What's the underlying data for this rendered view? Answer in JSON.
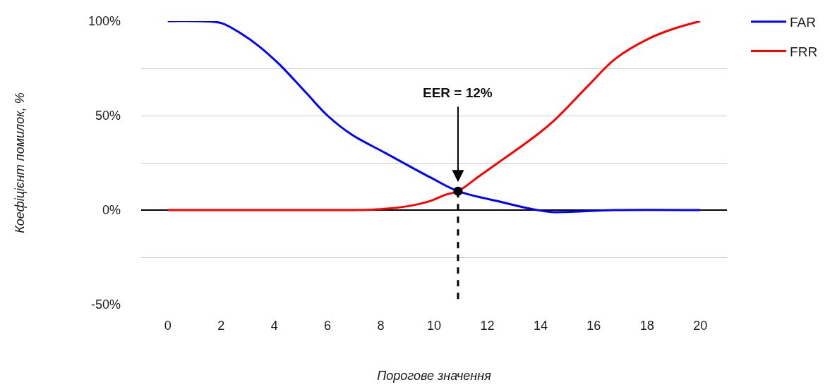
{
  "chart_data": {
    "type": "line",
    "xlabel": "Порогове значення",
    "ylabel": "Коефіцієнт помилок, %",
    "xlim": [
      -1,
      21
    ],
    "xticks": [
      0,
      2,
      4,
      6,
      8,
      10,
      12,
      14,
      16,
      18,
      20
    ],
    "ylim": [
      -50,
      100
    ],
    "yticks": [
      {
        "value": -50,
        "label": "-50%"
      },
      {
        "value": -25,
        "label": null
      },
      {
        "value": 0,
        "label": "0%"
      },
      {
        "value": 25,
        "label": null
      },
      {
        "value": 50,
        "label": "50%"
      },
      {
        "value": 75,
        "label": null
      },
      {
        "value": 100,
        "label": "100%"
      }
    ],
    "grid": "y",
    "legend": "top right",
    "series": [
      {
        "name": "FAR",
        "color": "#0000ff",
        "x": [
          0,
          1.2,
          2,
          2.8,
          3.4,
          4.2,
          5.2,
          6,
          6.9,
          8.2,
          9.9,
          10.9,
          12.6,
          13.5,
          14.4,
          15,
          16.8,
          20
        ],
        "values": [
          100,
          100,
          99,
          93,
          87,
          77,
          62,
          50,
          40,
          30,
          17,
          10,
          4,
          1,
          -1,
          -1,
          0,
          0
        ]
      },
      {
        "name": "FRR",
        "color": "#ff0000",
        "x": [
          0,
          2,
          4,
          6,
          7,
          8,
          9,
          9.9,
          10.4,
          10.9,
          11.7,
          12.6,
          13.5,
          14.4,
          15.8,
          16.8,
          18.1,
          19,
          20
        ],
        "values": [
          0,
          0,
          0,
          0,
          0,
          0.5,
          2,
          5,
          8,
          10,
          18,
          27,
          36,
          46,
          66,
          80,
          91,
          96,
          100
        ]
      },
      {
        "type": "line",
        "color": "#000000",
        "line_style": "dashed",
        "x": [
          10.9,
          10.9
        ],
        "values": [
          10,
          -50
        ]
      },
      {
        "type": "scatter",
        "color": "#000000",
        "marker": "circle",
        "x": [
          10.9
        ],
        "values": [
          10
        ]
      }
    ],
    "ref_lines": [
      {
        "axis": "y",
        "value": 0,
        "color": "#000000"
      }
    ],
    "annotations": [
      {
        "text": "EER = 12%",
        "x": 10.9,
        "y": 10
      }
    ]
  }
}
